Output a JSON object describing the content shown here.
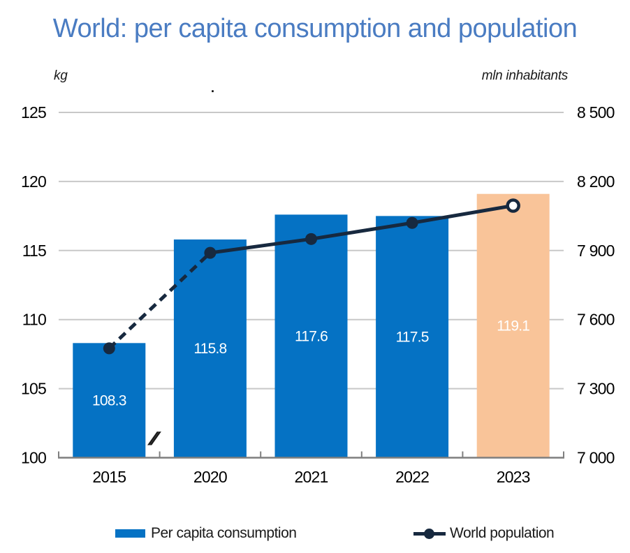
{
  "title": "World: per capita consumption and population",
  "left_axis": {
    "unit": "kg",
    "ticks": [
      125,
      120,
      115,
      110,
      105,
      100
    ]
  },
  "right_axis": {
    "unit": "mln inhabitants",
    "ticks": [
      {
        "label": "8 500",
        "value": 8500
      },
      {
        "label": "8 200",
        "value": 8200
      },
      {
        "label": "7 900",
        "value": 7900
      },
      {
        "label": "7 600",
        "value": 7600
      },
      {
        "label": "7 300",
        "value": 7300
      },
      {
        "label": "7 000",
        "value": 7000
      }
    ]
  },
  "axis_break_symbol": "//",
  "stray_mark": ".",
  "chart_data": {
    "type": "combo-bar-line",
    "title": "World: per capita consumption and population",
    "categories": [
      "2015",
      "2020",
      "2021",
      "2022",
      "2023"
    ],
    "series": [
      {
        "name": "Per capita consumption",
        "type": "bar",
        "axis": "left",
        "unit": "kg",
        "values": [
          108.3,
          115.8,
          117.6,
          117.5,
          119.1
        ],
        "data_labels": [
          "108.3",
          "115.8",
          "117.6",
          "117.5",
          "119.1"
        ],
        "bar_colors": [
          "#0572C4",
          "#0572C4",
          "#0572C4",
          "#0572C4",
          "#F9C499"
        ]
      },
      {
        "name": "World population",
        "type": "line",
        "axis": "right",
        "unit": "mln inhabitants",
        "values": [
          7475,
          7890,
          7950,
          8020,
          8095
        ],
        "dash_segment": [
          0,
          1
        ],
        "open_marker_index": 4
      }
    ],
    "left_ylabel": "kg",
    "right_ylabel": "mln inhabitants",
    "left_ylim": [
      100,
      125
    ],
    "right_ylim": [
      7000,
      8500
    ],
    "grid": true,
    "legend_position": "bottom",
    "axis_break": "x-axis break between 2015 and 2020"
  },
  "legend": {
    "items": [
      {
        "label": "Per capita consumption",
        "swatch": "bar"
      },
      {
        "label": "World population",
        "swatch": "line-dot"
      }
    ]
  },
  "colors": {
    "title": "#4A7CC2",
    "bar_blue": "#0572C4",
    "bar_orange": "#F9C499",
    "line_navy": "#17293F",
    "gridline": "#C8C8C8",
    "axis": "#7F7F7F",
    "tick_label": "#000000",
    "bar_label": "#FFFFFF"
  }
}
